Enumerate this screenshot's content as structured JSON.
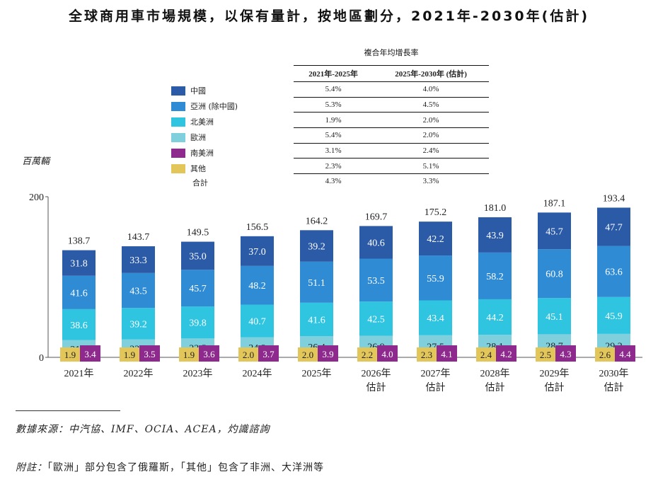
{
  "title": "全球商用車市場規模，以保有量計，按地區劃分，2021年-2030年(估計)",
  "cagr": {
    "header": "複合年均增長率",
    "col1": "2021年-2025年",
    "col2": "2025年-2030年 (估計)",
    "rows": [
      {
        "a": "5.4%",
        "b": "4.0%"
      },
      {
        "a": "5.3%",
        "b": "4.5%"
      },
      {
        "a": "1.9%",
        "b": "2.0%"
      },
      {
        "a": "5.4%",
        "b": "2.0%"
      },
      {
        "a": "3.1%",
        "b": "2.4%"
      },
      {
        "a": "2.3%",
        "b": "5.1%"
      },
      {
        "a": "4.3%",
        "b": "3.3%"
      }
    ]
  },
  "legend": {
    "items": [
      {
        "label": "中國",
        "color": "#2b5aa6"
      },
      {
        "label": "亞洲 (除中國)",
        "color": "#2f8bd3"
      },
      {
        "label": "北美洲",
        "color": "#2fc4e0"
      },
      {
        "label": "歐洲",
        "color": "#7fd0dc"
      },
      {
        "label": "南美洲",
        "color": "#8e2a8d"
      },
      {
        "label": "其他",
        "color": "#e3c65a"
      }
    ],
    "total_label": "合計"
  },
  "unit_label": "百萬輛",
  "chart_data": {
    "type": "bar",
    "stacked": true,
    "categories": [
      [
        "2021年"
      ],
      [
        "2022年"
      ],
      [
        "2023年"
      ],
      [
        "2024年"
      ],
      [
        "2025年"
      ],
      [
        "2026年",
        "估計"
      ],
      [
        "2027年",
        "估計"
      ],
      [
        "2028年",
        "估計"
      ],
      [
        "2029年",
        "估計"
      ],
      [
        "2030年",
        "估計"
      ]
    ],
    "ylim": [
      0,
      200
    ],
    "yticks": [
      0,
      200
    ],
    "series": [
      {
        "name": "中國",
        "color": "#2b5aa6",
        "values": [
          31.8,
          33.3,
          35.0,
          37.0,
          39.2,
          40.6,
          42.2,
          43.9,
          45.7,
          47.7
        ]
      },
      {
        "name": "亞洲 (除中國)",
        "color": "#2f8bd3",
        "values": [
          41.6,
          43.5,
          45.7,
          48.2,
          51.1,
          53.5,
          55.9,
          58.2,
          60.8,
          63.6
        ]
      },
      {
        "name": "北美洲",
        "color": "#2fc4e0",
        "values": [
          38.6,
          39.2,
          39.8,
          40.7,
          41.6,
          42.5,
          43.4,
          44.2,
          45.1,
          45.9
        ]
      },
      {
        "name": "歐洲",
        "color": "#7fd0dc",
        "values": [
          21.4,
          22.3,
          23.5,
          24.9,
          26.4,
          26.9,
          27.5,
          28.1,
          28.7,
          29.2
        ]
      },
      {
        "name": "南美洲",
        "color": "#8e2a8d",
        "values": [
          3.4,
          3.5,
          3.6,
          3.7,
          3.9,
          4.0,
          4.1,
          4.2,
          4.3,
          4.4
        ]
      },
      {
        "name": "其他",
        "color": "#e3c65a",
        "values": [
          1.9,
          1.9,
          1.9,
          2.0,
          2.0,
          2.2,
          2.3,
          2.4,
          2.5,
          2.6
        ]
      }
    ],
    "totals": [
      138.7,
      143.7,
      149.5,
      156.5,
      164.2,
      169.7,
      175.2,
      181.0,
      187.1,
      193.4
    ]
  },
  "source": "數據來源：中汽協、IMF、OCIA、ACEA，灼識諮詢",
  "note_lead": "附註：",
  "note_body": "「歐洲」部分包含了俄羅斯，「其他」包含了非洲、大洋洲等"
}
